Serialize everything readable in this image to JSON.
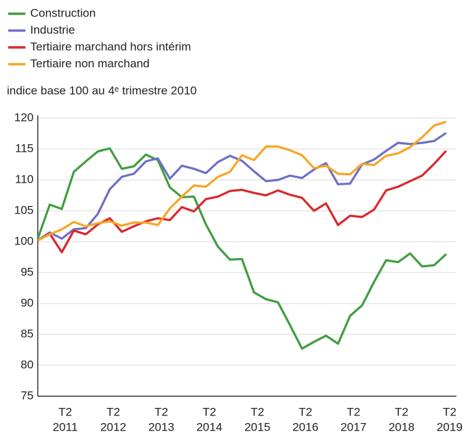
{
  "chart_data": {
    "type": "line",
    "subtitle": "indice base 100 au 4ᵉ trimestre 2010",
    "categories": [
      null,
      null,
      [
        "T2",
        "2011"
      ],
      null,
      null,
      null,
      [
        "T2",
        "2012"
      ],
      null,
      null,
      null,
      [
        "T2",
        "2013"
      ],
      null,
      null,
      null,
      [
        "T2",
        "2014"
      ],
      null,
      null,
      null,
      [
        "T2",
        "2015"
      ],
      null,
      null,
      null,
      [
        "T2",
        "2016"
      ],
      null,
      null,
      null,
      [
        "T2",
        "2017"
      ],
      null,
      null,
      null,
      [
        "T2",
        "2018"
      ],
      null,
      null,
      null,
      [
        "T2",
        "2019"
      ]
    ],
    "series": [
      {
        "name": "Construction",
        "color": "#3f9e3f",
        "values": [
          100.5,
          106,
          105.3,
          111.3,
          113,
          114.6,
          115.1,
          111.8,
          112.2,
          114.1,
          113.2,
          108.8,
          107.2,
          107.3,
          102.8,
          99.2,
          97.1,
          97.2,
          91.8,
          90.7,
          90.2,
          86.5,
          82.7,
          83.8,
          84.8,
          83.5,
          88,
          89.7,
          93.5,
          97,
          96.7,
          98.1,
          96,
          96.2,
          98
        ]
      },
      {
        "name": "Industrie",
        "color": "#6f6fc6",
        "values": [
          100.2,
          101.5,
          100.5,
          102,
          102.2,
          104.5,
          108.5,
          110.5,
          111,
          113,
          113.5,
          110.2,
          112.3,
          111.8,
          111.1,
          112.9,
          113.9,
          113.1,
          111.4,
          109.8,
          110,
          110.7,
          110.3,
          111.7,
          112.7,
          109.3,
          109.4,
          112.5,
          113.3,
          114.7,
          116,
          115.8,
          116,
          116.3,
          117.6
        ]
      },
      {
        "name": "Tertiaire marchand hors intérim",
        "color": "#d9282c",
        "values": [
          100.2,
          101.3,
          98.3,
          101.8,
          101.2,
          102.8,
          103.8,
          101.6,
          102.5,
          103.3,
          103.8,
          103.5,
          105.6,
          104.9,
          106.9,
          107.3,
          108.2,
          108.4,
          107.9,
          107.5,
          108.3,
          107.6,
          107.1,
          105,
          106.2,
          102.7,
          104.2,
          104,
          105.2,
          108.3,
          108.9,
          109.8,
          110.7,
          112.6,
          114.7
        ]
      },
      {
        "name": "Tertiaire non marchand",
        "color": "#f6a623",
        "values": [
          100.2,
          101.2,
          102,
          103.2,
          102.5,
          103,
          103.3,
          102.6,
          103.1,
          103.1,
          102.7,
          105.4,
          107.3,
          109.1,
          108.9,
          110.5,
          111.3,
          114,
          113.2,
          115.4,
          115.4,
          114.8,
          114,
          111.9,
          112.3,
          111,
          110.9,
          112.6,
          112.4,
          113.9,
          114.3,
          115.3,
          116.9,
          118.8,
          119.4
        ]
      }
    ],
    "ylim": [
      75,
      120
    ],
    "yticks": [
      75,
      80,
      85,
      90,
      95,
      100,
      105,
      110,
      115,
      120
    ],
    "grid": true
  }
}
